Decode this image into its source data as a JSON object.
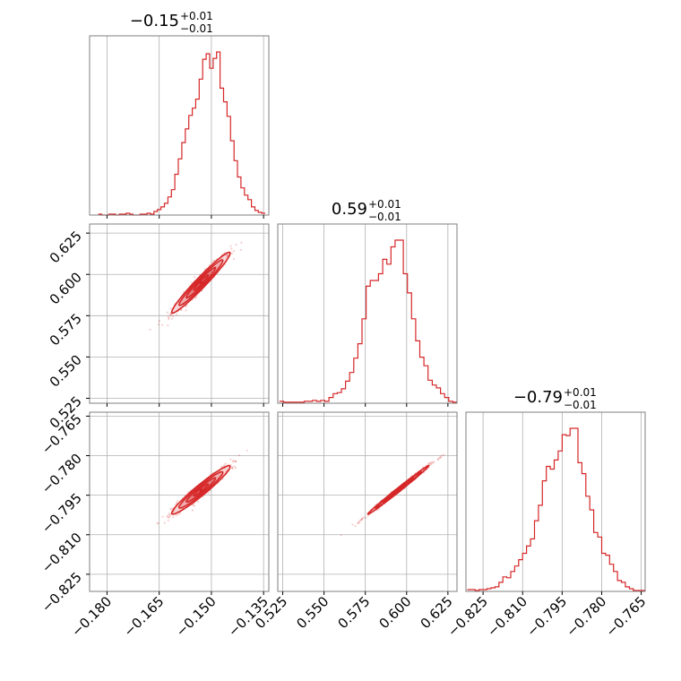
{
  "chart_data": {
    "type": "corner",
    "colors": {
      "series": "#d62728",
      "grid": "#b0b0b0",
      "frame": "#7f7f7f"
    },
    "grid": true,
    "parameters": [
      {
        "id": "p0",
        "median": "−0.15",
        "upper": "+0.01",
        "lower": "−0.01",
        "range": [
          -0.185,
          -0.1335
        ],
        "ticks": [
          "−0.180",
          "−0.165",
          "−0.150",
          "−0.135"
        ],
        "tick_values": [
          -0.18,
          -0.165,
          -0.15,
          -0.135
        ]
      },
      {
        "id": "p1",
        "median": "0.59",
        "upper": "+0.01",
        "lower": "−0.01",
        "range": [
          0.522,
          0.6305
        ],
        "ticks": [
          "0.525",
          "0.550",
          "0.575",
          "0.600",
          "0.625"
        ],
        "tick_values": [
          0.525,
          0.55,
          0.575,
          0.6,
          0.625
        ]
      },
      {
        "id": "p2",
        "median": "−0.79",
        "upper": "+0.01",
        "lower": "−0.01",
        "range": [
          -0.8315,
          -0.7635
        ],
        "ticks": [
          "−0.825",
          "−0.810",
          "−0.795",
          "−0.780",
          "−0.765"
        ],
        "tick_values": [
          -0.825,
          -0.81,
          -0.795,
          -0.78,
          -0.765
        ]
      }
    ],
    "histograms": [
      {
        "param": "p0",
        "bin_edges": [
          -0.1825,
          -0.1815,
          -0.1805,
          -0.1795,
          -0.1785,
          -0.1775,
          -0.1765,
          -0.1755,
          -0.1745,
          -0.1735,
          -0.1725,
          -0.1715,
          -0.1705,
          -0.1695,
          -0.1685,
          -0.1675,
          -0.1665,
          -0.1655,
          -0.1645,
          -0.1635,
          -0.1625,
          -0.1615,
          -0.1605,
          -0.1595,
          -0.1585,
          -0.1575,
          -0.1565,
          -0.1555,
          -0.1545,
          -0.1535,
          -0.1525,
          -0.1515,
          -0.1505,
          -0.1495,
          -0.1485,
          -0.1475,
          -0.1465,
          -0.1455,
          -0.1445,
          -0.1435,
          -0.1425,
          -0.1415,
          -0.1405,
          -0.1395,
          -0.1385,
          -0.1375,
          -0.1365,
          -0.1355,
          -0.1345
        ],
        "counts": [
          1,
          0,
          0,
          1,
          1,
          0,
          1,
          1,
          2,
          1,
          0,
          0,
          1,
          1,
          2,
          1,
          4,
          6,
          9,
          13,
          20,
          28,
          45,
          62,
          80,
          95,
          110,
          118,
          128,
          150,
          172,
          178,
          162,
          173,
          180,
          140,
          125,
          109,
          82,
          60,
          42,
          30,
          22,
          17,
          9,
          5,
          3,
          2
        ]
      },
      {
        "param": "p1",
        "bin_edges": [
          0.523,
          0.5255,
          0.528,
          0.5305,
          0.533,
          0.5355,
          0.538,
          0.5405,
          0.543,
          0.5455,
          0.548,
          0.5505,
          0.553,
          0.5555,
          0.558,
          0.5605,
          0.563,
          0.5655,
          0.568,
          0.5705,
          0.573,
          0.5755,
          0.578,
          0.5805,
          0.583,
          0.5855,
          0.588,
          0.5905,
          0.593,
          0.5955,
          0.598,
          0.6005,
          0.603,
          0.6055,
          0.608,
          0.6105,
          0.613,
          0.6155,
          0.618,
          0.6205,
          0.623,
          0.6255,
          0.628,
          0.6305
        ],
        "counts": [
          2,
          1,
          1,
          1,
          1,
          1,
          2,
          2,
          3,
          2,
          3,
          2,
          6,
          10,
          11,
          15,
          23,
          32,
          47,
          62,
          88,
          122,
          128,
          128,
          135,
          150,
          145,
          163,
          170,
          170,
          135,
          115,
          88,
          65,
          48,
          39,
          24,
          19,
          16,
          10,
          6,
          2,
          1
        ]
      },
      {
        "param": "p2",
        "bin_edges": [
          -0.831,
          -0.8295,
          -0.828,
          -0.8265,
          -0.825,
          -0.8235,
          -0.822,
          -0.8205,
          -0.819,
          -0.8175,
          -0.816,
          -0.8145,
          -0.813,
          -0.8115,
          -0.81,
          -0.8085,
          -0.807,
          -0.8055,
          -0.804,
          -0.8025,
          -0.801,
          -0.7995,
          -0.798,
          -0.7965,
          -0.795,
          -0.7935,
          -0.792,
          -0.7905,
          -0.789,
          -0.7875,
          -0.786,
          -0.7845,
          -0.783,
          -0.7815,
          -0.78,
          -0.7785,
          -0.777,
          -0.7755,
          -0.774,
          -0.7725,
          -0.771,
          -0.7695,
          -0.768,
          -0.7665,
          -0.765,
          -0.7635
        ],
        "counts": [
          2,
          2,
          1,
          2,
          2,
          3,
          4,
          5,
          10,
          16,
          15,
          22,
          28,
          35,
          42,
          50,
          58,
          78,
          95,
          122,
          138,
          135,
          145,
          155,
          173,
          172,
          180,
          180,
          142,
          130,
          105,
          90,
          65,
          60,
          42,
          40,
          30,
          22,
          12,
          10,
          5,
          3,
          1,
          1,
          1
        ]
      }
    ],
    "pairs": [
      {
        "x": "p0",
        "y": "p1",
        "x_center": -0.153,
        "y_center": 0.595,
        "x_sd": 0.0042,
        "y_sd": 0.0092,
        "correlation": 0.97,
        "contour_levels": [
          0.5,
          1.0,
          1.5,
          2.0
        ]
      },
      {
        "x": "p0",
        "y": "p2",
        "x_center": -0.153,
        "y_center": -0.793,
        "x_sd": 0.0042,
        "y_sd": 0.0046,
        "correlation": 0.96,
        "contour_levels": [
          0.5,
          1.0,
          1.5,
          2.0
        ]
      },
      {
        "x": "p1",
        "y": "p2",
        "x_center": 0.595,
        "y_center": -0.793,
        "x_sd": 0.0092,
        "y_sd": 0.0046,
        "correlation": 0.995,
        "contour_levels": [
          0.5,
          1.0,
          1.5,
          2.0
        ]
      }
    ]
  }
}
